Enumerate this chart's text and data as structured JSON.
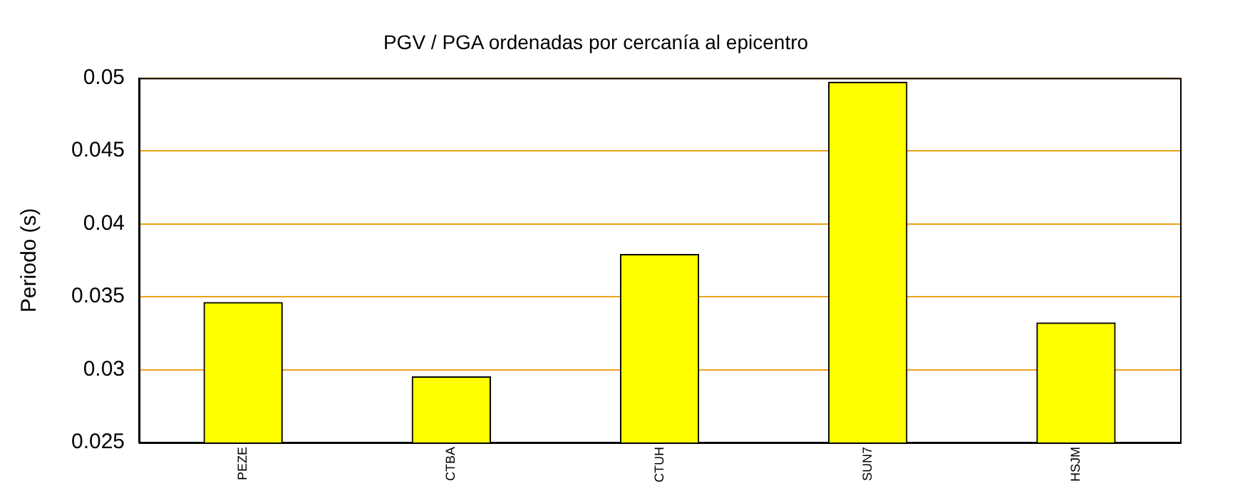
{
  "chart_data": {
    "type": "bar",
    "title": "PGV / PGA ordenadas por cercanía al epicentro",
    "ylabel": "Periodo (s)",
    "categories": [
      "PEZE",
      "CTBA",
      "CTUH",
      "SUN7",
      "HSJM"
    ],
    "values": [
      0.0346,
      0.0295,
      0.0379,
      0.0497,
      0.0332
    ],
    "color": "#ffff00",
    "ylim": [
      0.025,
      0.05
    ],
    "yticks": [
      0.025,
      0.03,
      0.035,
      0.04,
      0.045,
      0.05
    ],
    "grid": "y",
    "legend": false
  }
}
